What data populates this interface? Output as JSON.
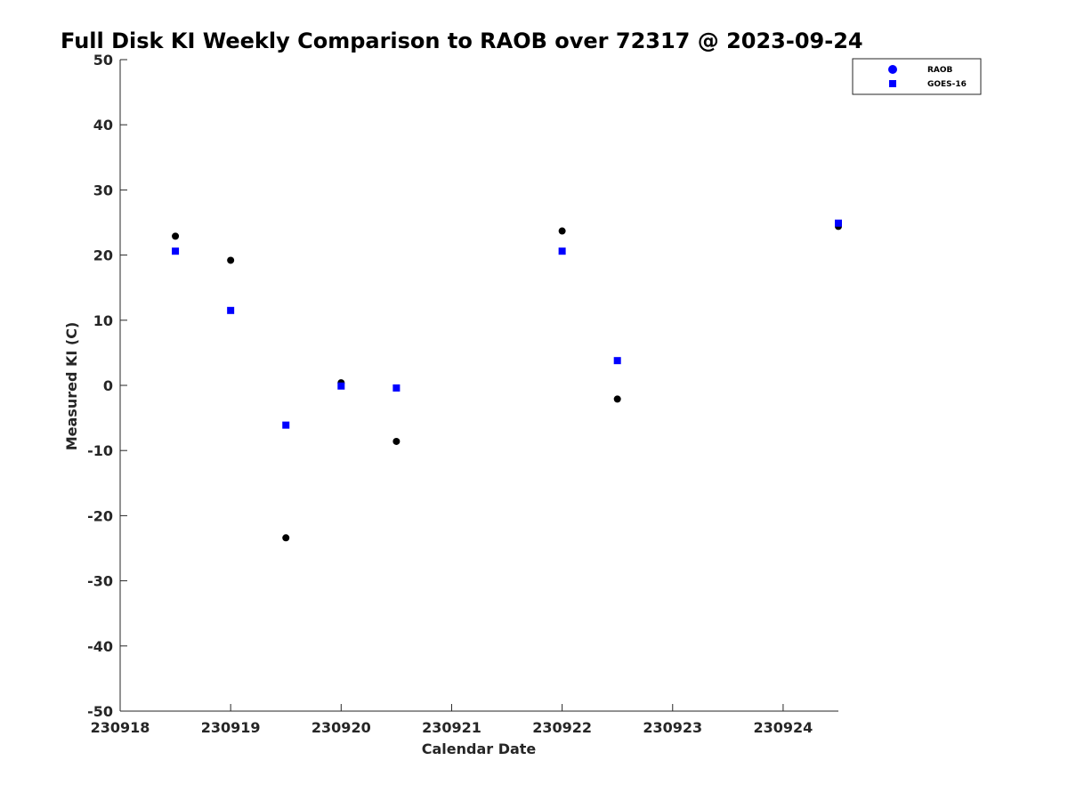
{
  "chart_data": {
    "type": "scatter",
    "title": "Full Disk KI Weekly Comparison to RAOB over 72317 @ 2023-09-24",
    "xlabel": "Calendar Date",
    "ylabel": "Measured KI (C)",
    "xlim": [
      230918,
      230924.5
    ],
    "ylim": [
      -50,
      50
    ],
    "x_ticks": [
      230918,
      230919,
      230920,
      230921,
      230922,
      230923,
      230924
    ],
    "x_tick_labels": [
      "230918",
      "230919",
      "230920",
      "230921",
      "230922",
      "230923",
      "230924"
    ],
    "y_ticks": [
      -50,
      -40,
      -30,
      -20,
      -10,
      0,
      10,
      20,
      30,
      40,
      50
    ],
    "y_tick_labels": [
      "-50",
      "-40",
      "-30",
      "-20",
      "-10",
      "0",
      "10",
      "20",
      "30",
      "40",
      "50"
    ],
    "grid": false,
    "legend_position": "top-right",
    "series": [
      {
        "name": "RAOB",
        "marker": "circle",
        "color": "#000000",
        "legend_color": "#0000ff",
        "x": [
          230918.5,
          230919,
          230919.5,
          230920,
          230920.5,
          230922,
          230922.5,
          230924.5
        ],
        "y": [
          22.9,
          19.2,
          -23.4,
          0.4,
          -8.6,
          23.7,
          -2.1,
          24.4
        ]
      },
      {
        "name": "GOES-16",
        "marker": "square",
        "color": "#0000ff",
        "legend_color": "#0000ff",
        "x": [
          230918.5,
          230919,
          230919.5,
          230920,
          230920.5,
          230922,
          230922.5,
          230924.5
        ],
        "y": [
          20.6,
          11.5,
          -6.1,
          -0.1,
          -0.4,
          20.6,
          3.8,
          24.9
        ]
      }
    ]
  }
}
